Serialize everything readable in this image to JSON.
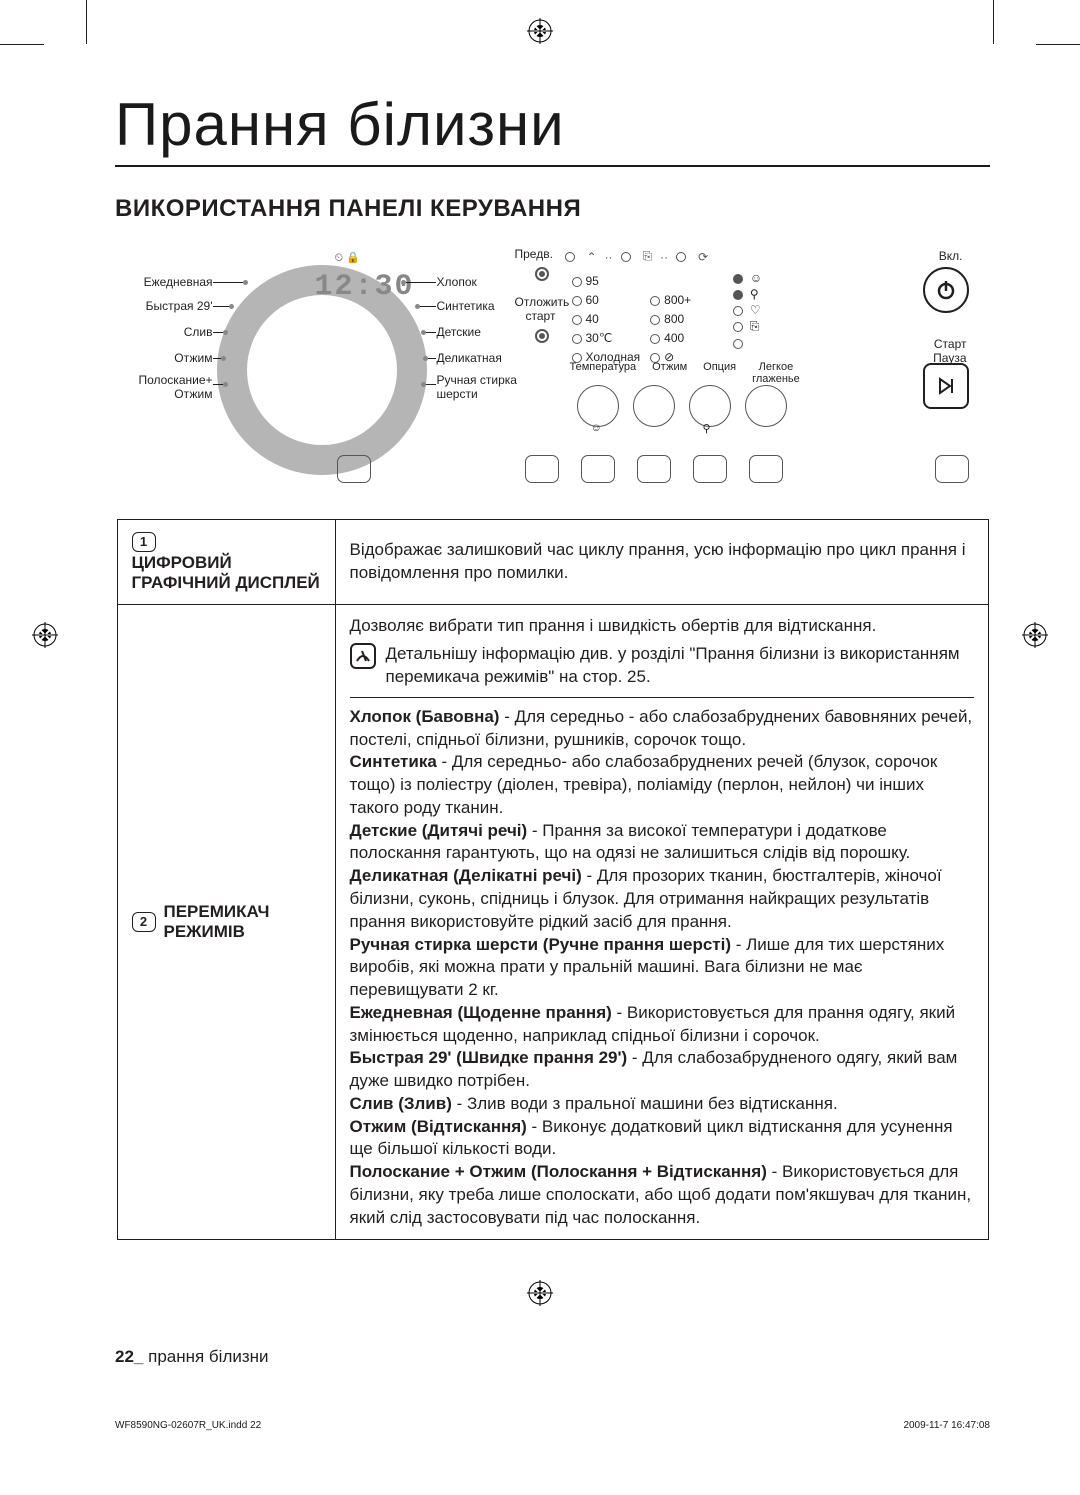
{
  "page": {
    "title": "Прання білизни",
    "section_heading": "ВИКОРИСТАННЯ ПАНЕЛІ КЕРУВАННЯ",
    "footer_page": "22_",
    "footer_text": "прання білизни",
    "print_left": "WF8590NG-02607R_UK.indd   22",
    "print_right": "2009-11-7   16:47:08"
  },
  "panel": {
    "display_digits": "12:30",
    "top_center_label": "Предв.",
    "delay_label": "Отложить\nстарт",
    "power_label": "Вкл.",
    "start_label": "Старт\nПауза",
    "left_labels": [
      "Ежедневная",
      "Быстрая 29'",
      "Слив",
      "Отжим",
      "Полоскание+\nОтжим"
    ],
    "right_labels": [
      "Хлопок",
      "Синтетика",
      "Детские",
      "Деликатная",
      "Ручная стирка\nшерсти"
    ],
    "temps": [
      "95",
      "60",
      "40",
      "30℃",
      "Холодная"
    ],
    "spins": [
      "",
      "800+",
      "800",
      "400",
      "⊘"
    ],
    "option_icons": [
      "☺",
      "⚲",
      "♡",
      "⎘",
      ""
    ],
    "bottom_labels": [
      "Температура",
      "Отжим",
      "Опция",
      "Легкое\nглаженье"
    ]
  },
  "table": {
    "row1": {
      "num": "1",
      "label": "ЦИФРОВИЙ\nГРАФІЧНИЙ ДИСПЛЕЙ",
      "text": "Відображає залишковий час циклу прання, усю інформацію про цикл прання і повідомлення про помилки."
    },
    "row2": {
      "num": "2",
      "label": "ПЕРЕМИКАЧ\nРЕЖИМІВ",
      "intro": "Дозволяє вибрати тип прання і швидкість обертів для відтискання.",
      "info": "Детальнішу інформацію див. у розділі \"Прання білизни із використанням перемикача режимів\" на стор. 25.",
      "items": [
        {
          "b": "Хлопок (Бавовна)",
          "t": " - Для середньо - або слабозабруднених бавовняних речей, постелі, спідньої білизни, рушників, сорочок тощо."
        },
        {
          "b": "Синтетика",
          "t": " - Для середньо- або слабозабруднених речей (блузок, сорочок тощо) із поліестру (діолен, тревіра), поліаміду (перлон, нейлон) чи інших такого роду тканин."
        },
        {
          "b": "Детские (Дитячі речі)",
          "t": " - Прання за високої температури і додаткове полоскання гарантують, що на одязі не залишиться слідів від порошку."
        },
        {
          "b": "Деликатная (Делікатні речі)",
          "t": " - Для прозорих тканин, бюстгалтерів, жіночої білизни, суконь, спідниць і блузок. Для отримання найкращих результатів прання використовуйте рідкий засіб для прання."
        },
        {
          "b": "Ручная стирка шерсти (Ручне прання шерсті)",
          "t": " - Лише для тих шерстяних виробів, які можна прати у пральній машині. Вага білизни не має перевищувати 2 кг."
        },
        {
          "b": "Ежедневная (Щоденне прання)",
          "t": " - Використовується для прання одягу, який змінюється щоденно, наприклад спідньої білизни і сорочок."
        },
        {
          "b": "Быстрая 29' (Швидке прання 29')",
          "t": " - Для слабозабрудненого одягу, який вам дуже швидко потрібен."
        },
        {
          "b": "Слив (Злив)",
          "t": " - Злив води з пральної машини без відтискання."
        },
        {
          "b": "Отжим (Відтискання)",
          "t": " - Виконує додатковий цикл відтискання для усунення ще більшої кількості води."
        },
        {
          "b": "Полоскание + Отжим (Полоскання + Відтискання)",
          "t": " - Використовується для білизни, яку треба лише сполоскати, або щоб додати пом'якшувач для тканин, який слід застосовувати під час полоскання."
        }
      ]
    }
  },
  "colors": {
    "text": "#231f20",
    "rule": "#231f20",
    "dial": "#b5b5b5",
    "muted": "#888888"
  }
}
